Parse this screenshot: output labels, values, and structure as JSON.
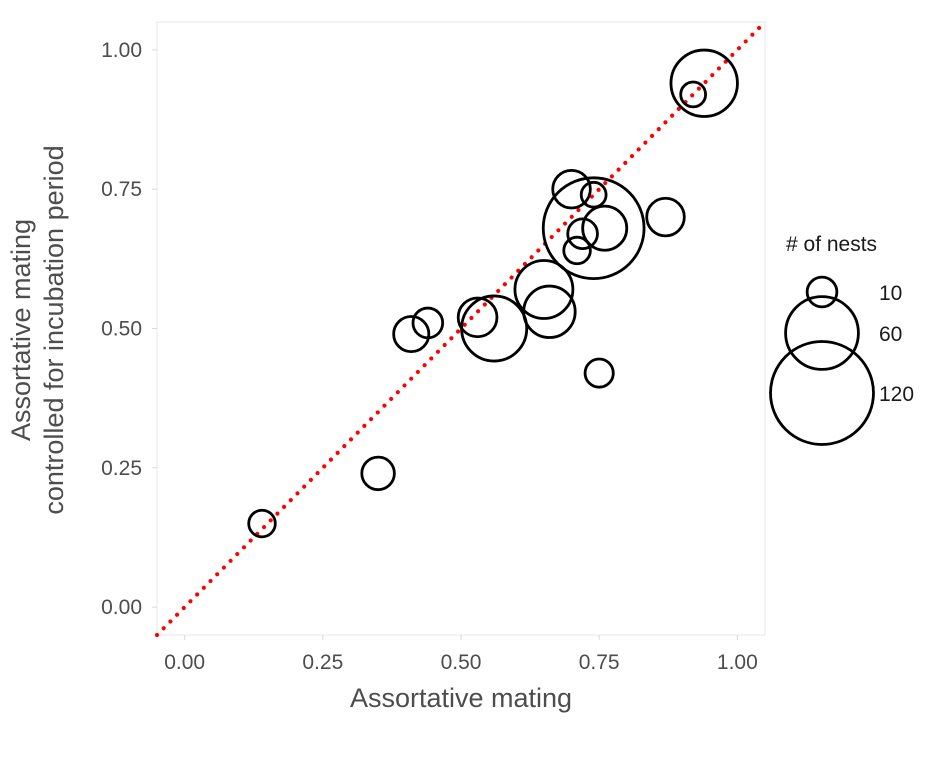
{
  "chart_data": {
    "type": "scatter",
    "title": "",
    "xlabel": "Assortative mating",
    "ylabel_lines": [
      "Assortative mating",
      "controlled for incubation period"
    ],
    "xlim": [
      -0.05,
      1.05
    ],
    "ylim": [
      -0.05,
      1.05
    ],
    "x_ticks": [
      0.0,
      0.25,
      0.5,
      0.75,
      1.0
    ],
    "y_ticks": [
      0.0,
      0.25,
      0.5,
      0.75,
      1.0
    ],
    "x_tick_labels": [
      "0.00",
      "0.25",
      "0.50",
      "0.75",
      "1.00"
    ],
    "y_tick_labels": [
      "0.00",
      "0.25",
      "0.50",
      "0.75",
      "1.00"
    ],
    "grid": false,
    "reference_line": {
      "type": "identity",
      "slope": 1,
      "intercept": 0,
      "color": "#ff0000",
      "style": "dotted"
    },
    "points": [
      {
        "x": 0.14,
        "y": 0.15,
        "nests": 8
      },
      {
        "x": 0.35,
        "y": 0.24,
        "nests": 12
      },
      {
        "x": 0.41,
        "y": 0.49,
        "nests": 14
      },
      {
        "x": 0.44,
        "y": 0.51,
        "nests": 10
      },
      {
        "x": 0.53,
        "y": 0.52,
        "nests": 17
      },
      {
        "x": 0.56,
        "y": 0.5,
        "nests": 48
      },
      {
        "x": 0.65,
        "y": 0.57,
        "nests": 38
      },
      {
        "x": 0.66,
        "y": 0.53,
        "nests": 30
      },
      {
        "x": 0.7,
        "y": 0.75,
        "nests": 16
      },
      {
        "x": 0.71,
        "y": 0.64,
        "nests": 8
      },
      {
        "x": 0.72,
        "y": 0.67,
        "nests": 10
      },
      {
        "x": 0.74,
        "y": 0.74,
        "nests": 7
      },
      {
        "x": 0.74,
        "y": 0.68,
        "nests": 115
      },
      {
        "x": 0.75,
        "y": 0.42,
        "nests": 9
      },
      {
        "x": 0.76,
        "y": 0.68,
        "nests": 22
      },
      {
        "x": 0.87,
        "y": 0.7,
        "nests": 16
      },
      {
        "x": 0.92,
        "y": 0.92,
        "nests": 7
      },
      {
        "x": 0.94,
        "y": 0.94,
        "nests": 50
      }
    ],
    "legend": {
      "title": "# of nests",
      "placement": "right",
      "entries": [
        {
          "label": "10",
          "nests": 10
        },
        {
          "label": "60",
          "nests": 60
        },
        {
          "label": "120",
          "nests": 120
        }
      ]
    },
    "colors": {
      "point_stroke": "#000000",
      "reference_line": "#ff0000",
      "panel_border": "#ebebeb",
      "text": "#4d4d4d"
    }
  }
}
